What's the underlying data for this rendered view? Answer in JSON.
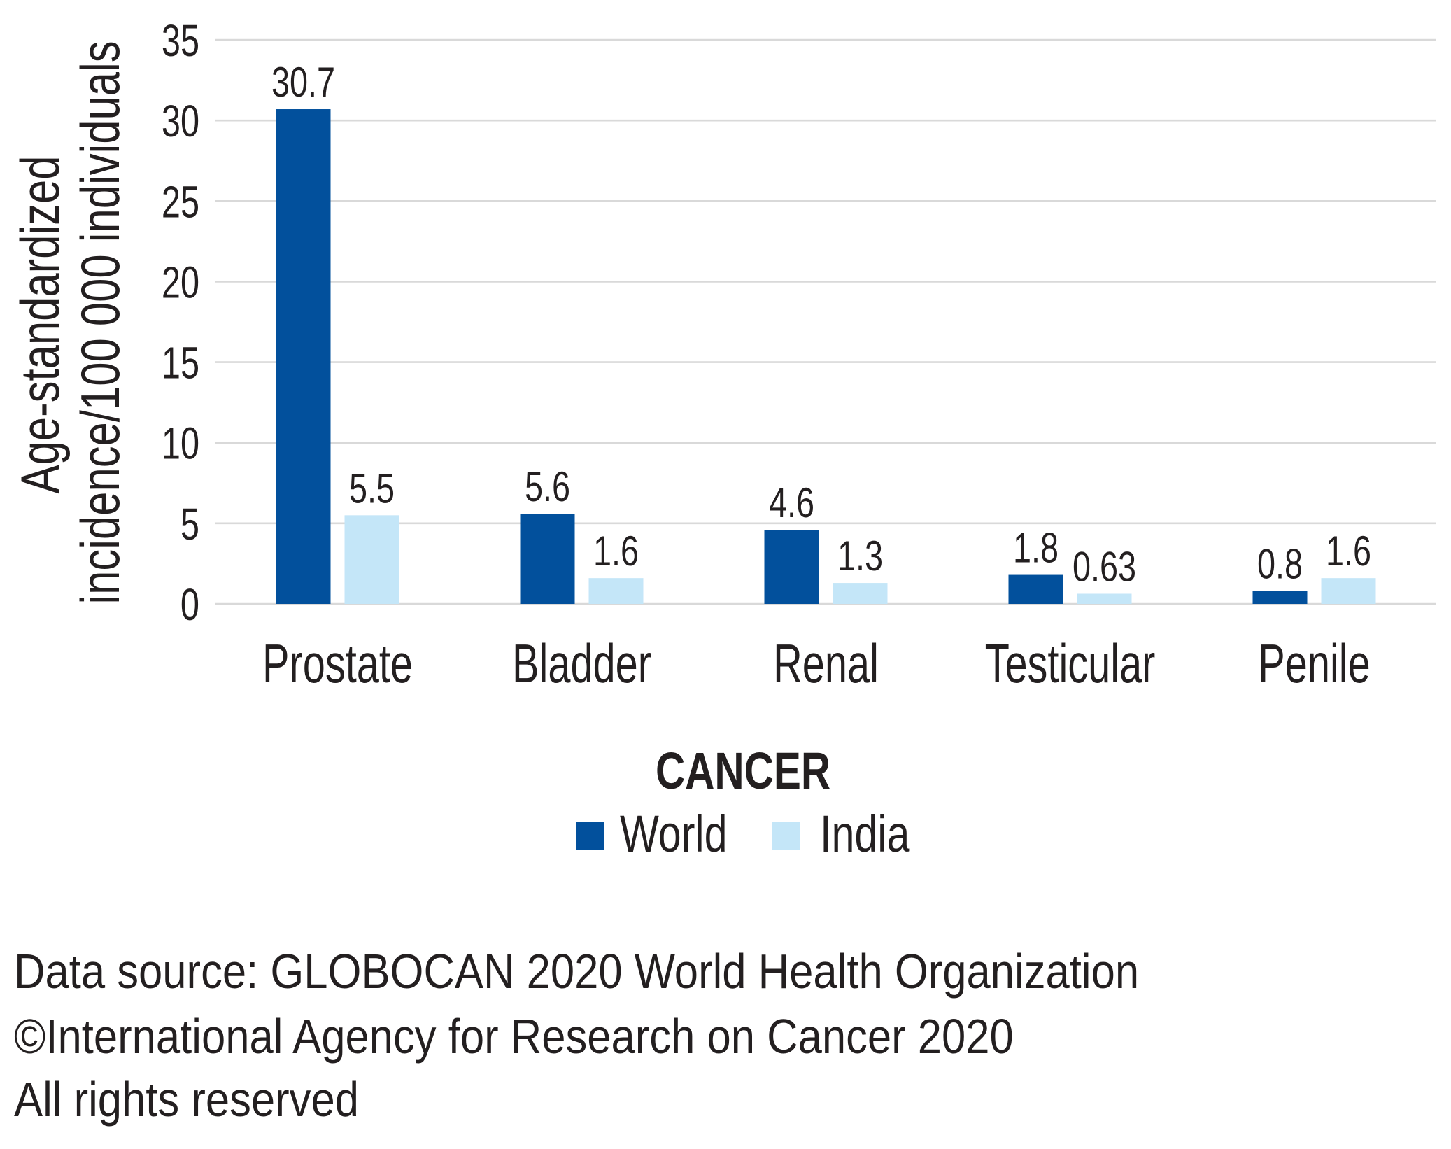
{
  "chart_data": {
    "type": "bar",
    "categories": [
      "Prostate",
      "Bladder",
      "Renal",
      "Testicular",
      "Penile"
    ],
    "series": [
      {
        "name": "World",
        "values": [
          30.7,
          5.6,
          4.6,
          1.8,
          0.8
        ],
        "color": "#02509c"
      },
      {
        "name": "India",
        "values": [
          5.5,
          1.6,
          1.3,
          0.63,
          1.6
        ],
        "color": "#c4e6f8"
      }
    ],
    "xlabel": "CANCER",
    "ylabel": [
      "Age-standardized",
      "incidence/100 000 individuals"
    ],
    "ylim": [
      0,
      35
    ],
    "yticks": [
      0,
      5,
      10,
      15,
      20,
      25,
      30,
      35
    ],
    "grid": true,
    "legend": "bottom-center",
    "data_labels": true
  },
  "source_note": [
    "Data source: GLOBOCAN 2020 World Health Organization",
    "©International Agency for Research on Cancer 2020",
    "All rights reserved"
  ]
}
